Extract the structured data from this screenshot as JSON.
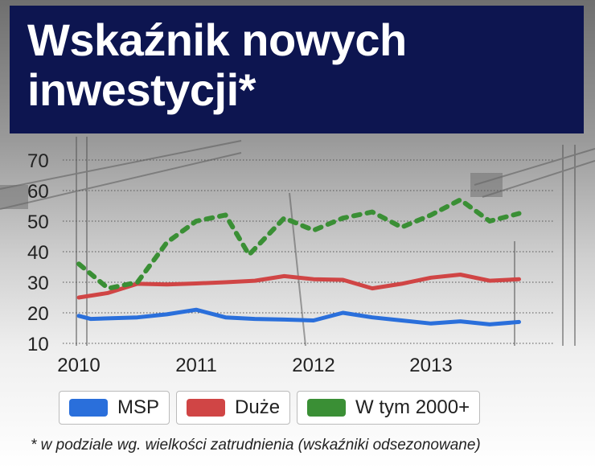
{
  "header": {
    "title_line1": "Wskaźnik nowych",
    "title_line2": "inwestycji*"
  },
  "footnote": "* w podziale wg. wielkości zatrudnienia (wskaźniki odsezonowane)",
  "colors": {
    "title_bg": "#0d1550",
    "msp": "#2a6fdb",
    "duze": "#d04545",
    "w_tym_2000": "#3a8f35"
  },
  "chart_data": {
    "type": "line",
    "title": "Wskaźnik nowych inwestycji*",
    "ylim": [
      10,
      70
    ],
    "yticks": [
      10,
      20,
      30,
      40,
      50,
      60,
      70
    ],
    "xlim": [
      2010,
      2014
    ],
    "xticks": [
      2010,
      2011,
      2012,
      2013
    ],
    "grid": true,
    "legend_position": "bottom",
    "series": [
      {
        "name": "MSP",
        "style": "solid",
        "color": "#2a6fdb",
        "points": [
          [
            2010.0,
            19
          ],
          [
            2010.1,
            18
          ],
          [
            2010.5,
            18.5
          ],
          [
            2010.75,
            19.5
          ],
          [
            2011.0,
            21
          ],
          [
            2011.25,
            18.5
          ],
          [
            2011.5,
            18
          ],
          [
            2011.75,
            17.8
          ],
          [
            2012.0,
            17.5
          ],
          [
            2012.25,
            20
          ],
          [
            2012.5,
            18.5
          ],
          [
            2012.75,
            17.5
          ],
          [
            2013.0,
            16.5
          ],
          [
            2013.25,
            17.2
          ],
          [
            2013.5,
            16.2
          ],
          [
            2013.75,
            17
          ]
        ]
      },
      {
        "name": "Duże",
        "style": "solid",
        "color": "#d04545",
        "points": [
          [
            2010.0,
            25
          ],
          [
            2010.25,
            26.5
          ],
          [
            2010.5,
            29.5
          ],
          [
            2010.75,
            29.3
          ],
          [
            2011.0,
            29.6
          ],
          [
            2011.25,
            30
          ],
          [
            2011.5,
            30.5
          ],
          [
            2011.75,
            32
          ],
          [
            2012.0,
            31
          ],
          [
            2012.25,
            30.8
          ],
          [
            2012.5,
            28
          ],
          [
            2012.75,
            29.5
          ],
          [
            2013.0,
            31.5
          ],
          [
            2013.25,
            32.5
          ],
          [
            2013.5,
            30.5
          ],
          [
            2013.75,
            31
          ]
        ]
      },
      {
        "name": "W tym 2000+",
        "style": "dashed",
        "color": "#3a8f35",
        "points": [
          [
            2010.0,
            36
          ],
          [
            2010.25,
            28
          ],
          [
            2010.5,
            30
          ],
          [
            2010.75,
            43
          ],
          [
            2011.0,
            50
          ],
          [
            2011.25,
            52
          ],
          [
            2011.45,
            39
          ],
          [
            2011.75,
            51
          ],
          [
            2012.0,
            47
          ],
          [
            2012.25,
            51
          ],
          [
            2012.5,
            53
          ],
          [
            2012.75,
            48
          ],
          [
            2013.0,
            52
          ],
          [
            2013.25,
            57
          ],
          [
            2013.5,
            50
          ],
          [
            2013.75,
            52.5
          ]
        ]
      }
    ]
  },
  "legend": [
    {
      "label": "MSP",
      "color": "#2a6fdb"
    },
    {
      "label": "Duże",
      "color": "#d04545"
    },
    {
      "label": "W tym 2000+",
      "color": "#3a8f35"
    }
  ]
}
